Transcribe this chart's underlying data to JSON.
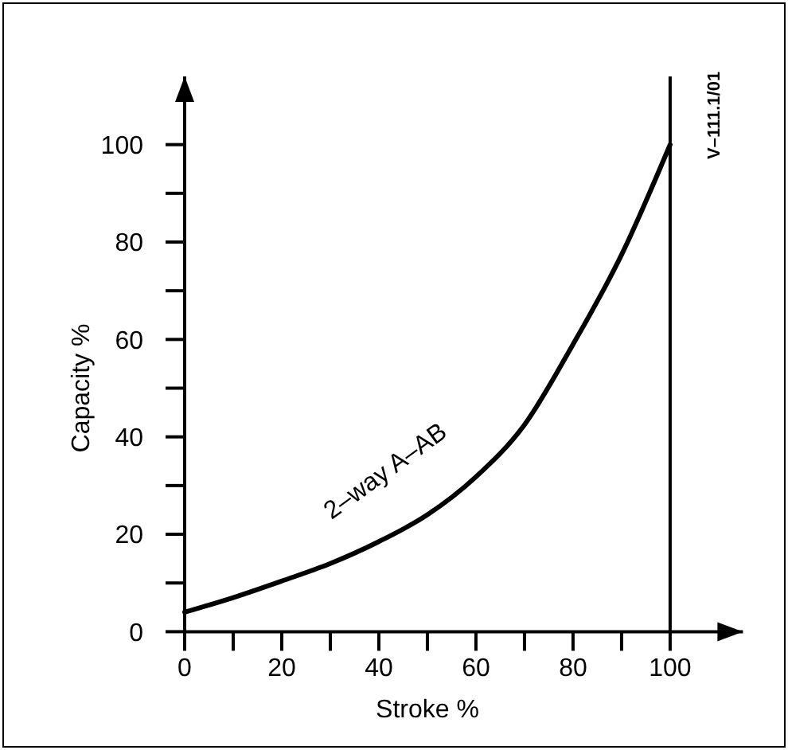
{
  "chart_data": {
    "type": "line",
    "xlabel": "Stroke %",
    "ylabel": "Capacity %",
    "x": [
      0,
      10,
      20,
      30,
      40,
      50,
      60,
      70,
      80,
      90,
      100
    ],
    "series": [
      {
        "color": "#000000",
        "values": [
          4,
          7,
          10.4,
          14,
          18.5,
          24,
          31.8,
          42.5,
          59,
          77.4,
          100
        ]
      }
    ],
    "xlim": [
      0,
      115
    ],
    "ylim": [
      0,
      114
    ],
    "xticks": [
      0,
      {
        "value": 10,
        "label": null
      },
      20,
      {
        "value": 30,
        "label": null
      },
      40,
      {
        "value": 50,
        "label": null
      },
      60,
      {
        "value": 70,
        "label": null
      },
      80,
      {
        "value": 90,
        "label": null
      },
      100
    ],
    "yticks": [
      0,
      {
        "value": 10,
        "label": null
      },
      20,
      {
        "value": 30,
        "label": null
      },
      40,
      {
        "value": 50,
        "label": null
      },
      60,
      {
        "value": 70,
        "label": null
      },
      80,
      {
        "value": 90,
        "label": null
      },
      100
    ],
    "ref_lines": [
      {
        "axis": "x",
        "value": 100,
        "color": "#000000"
      }
    ],
    "annotations": [
      "2–way A–AB",
      "V–111.1/01"
    ],
    "grid": false,
    "marker": "none",
    "line_style": "solid"
  }
}
